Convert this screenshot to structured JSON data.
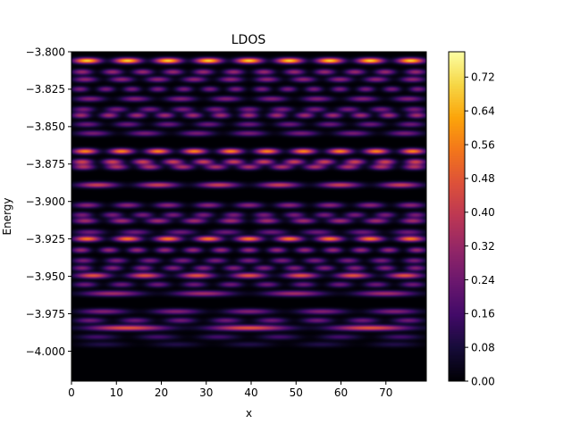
{
  "chart_data": {
    "type": "heatmap",
    "title": "LDOS",
    "xlabel": "x",
    "ylabel": "Energy",
    "xlim": [
      0,
      79
    ],
    "ylim": [
      -4.02,
      -3.8
    ],
    "x_ticks": [
      0,
      10,
      20,
      30,
      40,
      50,
      60,
      70
    ],
    "y_ticks": [
      -3.8,
      -3.825,
      -3.85,
      -3.875,
      -3.9,
      -3.925,
      -3.95,
      -3.975,
      -4.0
    ],
    "y_tick_labels": [
      "−3.800",
      "−3.825",
      "−3.850",
      "−3.875",
      "−3.900",
      "−3.925",
      "−3.950",
      "−3.975",
      "−4.000"
    ],
    "colormap": "inferno",
    "colorbar": {
      "vmin": 0.0,
      "vmax": 0.78,
      "ticks": [
        0.0,
        0.08,
        0.16,
        0.24,
        0.32,
        0.4,
        0.48,
        0.56,
        0.64,
        0.72
      ],
      "tick_labels": [
        "0.00",
        "0.08",
        "0.16",
        "0.24",
        "0.32",
        "0.40",
        "0.48",
        "0.56",
        "0.64",
        "0.72"
      ]
    },
    "energy_bands": [
      {
        "energy": -3.806,
        "peak": 0.7,
        "modes": 9
      },
      {
        "energy": -3.8135,
        "peak": 0.32,
        "modes": 12
      },
      {
        "energy": -3.8185,
        "peak": 0.3,
        "modes": 10
      },
      {
        "energy": -3.825,
        "peak": 0.26,
        "modes": 14
      },
      {
        "energy": -3.8315,
        "peak": 0.28,
        "modes": 8
      },
      {
        "energy": -3.8385,
        "peak": 0.26,
        "modes": 11
      },
      {
        "energy": -3.8425,
        "peak": 0.34,
        "modes": 13
      },
      {
        "energy": -3.8485,
        "peak": 0.24,
        "modes": 9
      },
      {
        "energy": -3.8545,
        "peak": 0.26,
        "modes": 7
      },
      {
        "energy": -3.8665,
        "peak": 0.58,
        "modes": 10
      },
      {
        "energy": -3.8735,
        "peak": 0.42,
        "modes": 12
      },
      {
        "energy": -3.877,
        "peak": 0.36,
        "modes": 11
      },
      {
        "energy": -3.889,
        "peak": 0.42,
        "modes": 6
      },
      {
        "energy": -3.9025,
        "peak": 0.3,
        "modes": 9
      },
      {
        "energy": -3.909,
        "peak": 0.26,
        "modes": 12
      },
      {
        "energy": -3.913,
        "peak": 0.34,
        "modes": 10
      },
      {
        "energy": -3.9205,
        "peak": 0.24,
        "modes": 8
      },
      {
        "energy": -3.925,
        "peak": 0.56,
        "modes": 9
      },
      {
        "energy": -3.9325,
        "peak": 0.32,
        "modes": 13
      },
      {
        "energy": -3.9395,
        "peak": 0.26,
        "modes": 11
      },
      {
        "energy": -3.9445,
        "peak": 0.28,
        "modes": 12
      },
      {
        "energy": -3.9495,
        "peak": 0.48,
        "modes": 7
      },
      {
        "energy": -3.9555,
        "peak": 0.24,
        "modes": 10
      },
      {
        "energy": -3.9615,
        "peak": 0.34,
        "modes": 4
      },
      {
        "energy": -3.9735,
        "peak": 0.28,
        "modes": 5
      },
      {
        "energy": -3.9795,
        "peak": 0.24,
        "modes": 8
      },
      {
        "energy": -3.9845,
        "peak": 0.48,
        "modes": 3
      },
      {
        "energy": -3.9905,
        "peak": 0.16,
        "modes": 6
      },
      {
        "energy": -3.9955,
        "peak": 0.1,
        "modes": 5
      }
    ]
  }
}
